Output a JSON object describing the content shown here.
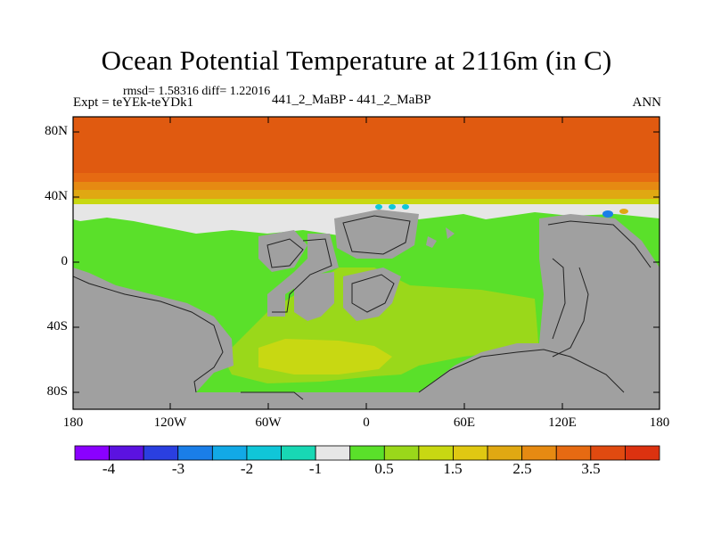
{
  "title": "Ocean Potential Temperature at 2116m (in C)",
  "stats": "rmsd= 1.58316 diff= 1.22016",
  "experiment": "Expt = teYEk-teYDk1",
  "experiments_compared": "441_2_MaBP - 441_2_MaBP",
  "season": "ANN",
  "lat_labels": [
    "80N",
    "40N",
    "0",
    "40S",
    "80S"
  ],
  "lon_labels": [
    "180",
    "120W",
    "60W",
    "0",
    "60E",
    "120E",
    "180"
  ],
  "colorbar": {
    "labels": [
      "-4",
      "-3",
      "-2",
      "-1",
      "0.5",
      "1.5",
      "2.5",
      "3.5"
    ],
    "colors": [
      "#8a00ff",
      "#5b12e0",
      "#2a3fe0",
      "#1a7ee8",
      "#12a9e6",
      "#10c6d8",
      "#18d8b4",
      "#e6e6e6",
      "#5ae02a",
      "#9ad81a",
      "#c8d812",
      "#e0c812",
      "#e0a812",
      "#e68a12",
      "#e66a12",
      "#e04a10",
      "#dc3210"
    ]
  },
  "colors": {
    "land": "#a0a0a0",
    "warm_band": "#e05a10",
    "near_zero": "#e6e6e6",
    "diff_low": "#5ae02a",
    "diff_mid": "#9ad81a",
    "diff_high": "#c8d812"
  }
}
